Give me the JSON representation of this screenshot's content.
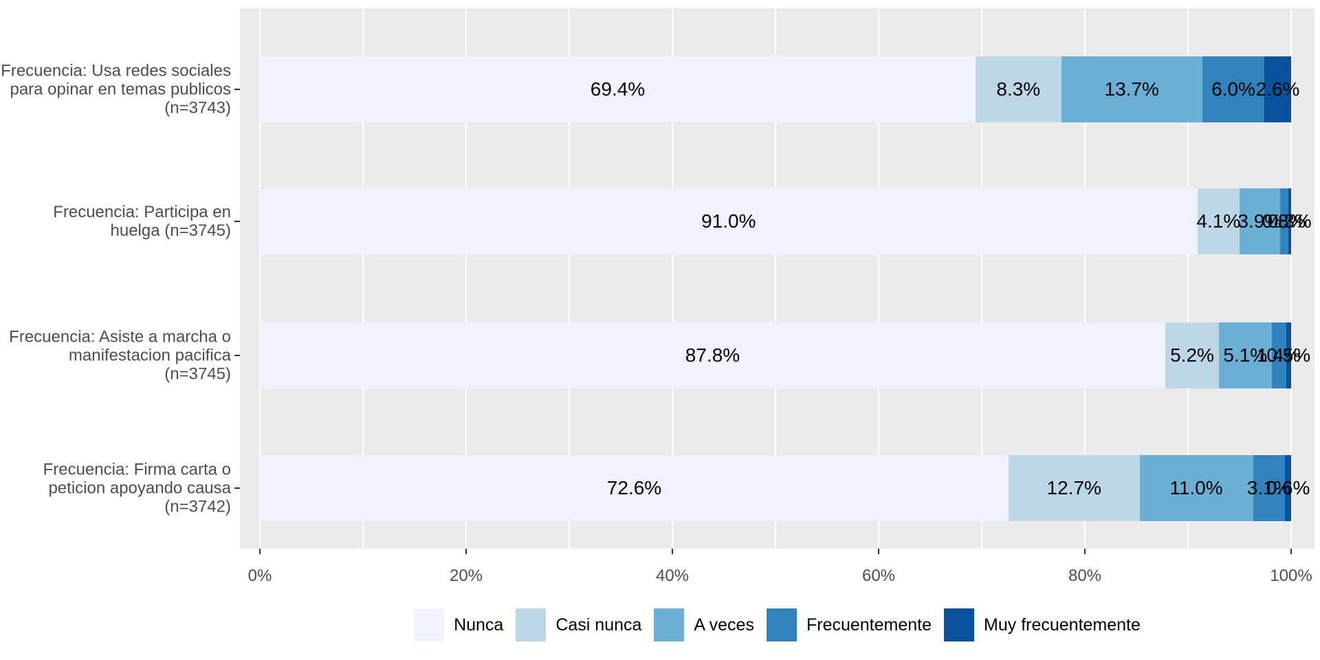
{
  "chart_data": {
    "type": "bar",
    "orientation": "horizontal_stacked",
    "title": "",
    "xlabel": "",
    "ylabel": "",
    "xlim": [
      0,
      100
    ],
    "x_ticks": [
      "0%",
      "20%",
      "40%",
      "60%",
      "80%",
      "100%"
    ],
    "x_tick_values": [
      0,
      20,
      40,
      60,
      80,
      100
    ],
    "x_minor_tick_values": [
      10,
      30,
      50,
      70,
      90
    ],
    "grid": "on",
    "legend_position": "bottom",
    "panel_background": "#EBEBEB",
    "gridline_color": "#ffffff",
    "axis_text_color": "#4D4D4D",
    "tick_color": "#333333",
    "bar_label_color": "#000000",
    "categories": [
      {
        "lines": [
          "Frecuencia: Usa redes sociales",
          "para opinar en temas publicos",
          "(n=3743)"
        ]
      },
      {
        "lines": [
          "Frecuencia: Participa en",
          "huelga (n=3745)"
        ]
      },
      {
        "lines": [
          "Frecuencia: Asiste a marcha o",
          "manifestacion pacifica",
          "(n=3745)"
        ]
      },
      {
        "lines": [
          "Frecuencia: Firma carta o",
          "peticion apoyando causa",
          "(n=3742)"
        ]
      }
    ],
    "series": [
      {
        "name": "Nunca",
        "color": "#EFF3FF",
        "values": [
          69.4,
          91.0,
          87.8,
          72.6
        ],
        "labels": [
          "69.4%",
          "91.0%",
          "87.8%",
          "72.6%"
        ]
      },
      {
        "name": "Casi nunca",
        "color": "#BDD7E7",
        "values": [
          8.3,
          4.1,
          5.2,
          12.7
        ],
        "labels": [
          "8.3%",
          "4.1%",
          "5.2%",
          "12.7%"
        ]
      },
      {
        "name": "A veces",
        "color": "#6BAED6",
        "values": [
          13.7,
          3.9,
          5.1,
          11.0
        ],
        "labels": [
          "13.7%",
          "3.9%",
          "5.1%",
          "11.0%"
        ]
      },
      {
        "name": "Frecuentemente",
        "color": "#3182BD",
        "values": [
          6.0,
          0.8,
          1.4,
          3.1
        ],
        "labels": [
          "6.0%",
          "0.8%",
          "1.4%",
          "3.1%"
        ]
      },
      {
        "name": "Muy frecuentemente",
        "color": "#08519C",
        "values": [
          2.6,
          0.3,
          0.5,
          0.6
        ],
        "labels": [
          "2.6%",
          "0.3%",
          "0.5%",
          "0.6%"
        ]
      }
    ]
  }
}
